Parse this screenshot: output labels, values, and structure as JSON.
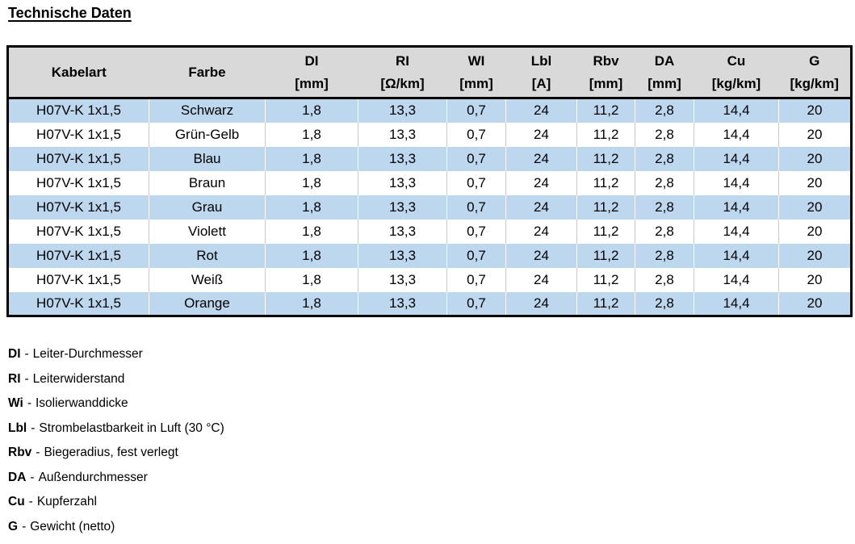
{
  "title": "Technische Daten",
  "colors": {
    "row_alt": "#BDD7EE",
    "header_bg": "#D9D9D9",
    "frame": "#000000"
  },
  "table": {
    "columns": [
      {
        "key": "kabelart",
        "label": "Kabelart",
        "unit": ""
      },
      {
        "key": "farbe",
        "label": "Farbe",
        "unit": ""
      },
      {
        "key": "di",
        "label": "DI",
        "unit": "[mm]"
      },
      {
        "key": "ri",
        "label": "RI",
        "unit": "[Ω/km]"
      },
      {
        "key": "wi",
        "label": "WI",
        "unit": "[mm]"
      },
      {
        "key": "lbl",
        "label": "Lbl",
        "unit": "[A]"
      },
      {
        "key": "rbv",
        "label": "Rbv",
        "unit": "[mm]"
      },
      {
        "key": "da",
        "label": "DA",
        "unit": "[mm]"
      },
      {
        "key": "cu",
        "label": "Cu",
        "unit": "[kg/km]"
      },
      {
        "key": "g",
        "label": "G",
        "unit": "[kg/km]"
      }
    ],
    "rows": [
      [
        "H07V-K 1x1,5",
        "Schwarz",
        "1,8",
        "13,3",
        "0,7",
        "24",
        "11,2",
        "2,8",
        "14,4",
        "20"
      ],
      [
        "H07V-K 1x1,5",
        "Grün-Gelb",
        "1,8",
        "13,3",
        "0,7",
        "24",
        "11,2",
        "2,8",
        "14,4",
        "20"
      ],
      [
        "H07V-K 1x1,5",
        "Blau",
        "1,8",
        "13,3",
        "0,7",
        "24",
        "11,2",
        "2,8",
        "14,4",
        "20"
      ],
      [
        "H07V-K 1x1,5",
        "Braun",
        "1,8",
        "13,3",
        "0,7",
        "24",
        "11,2",
        "2,8",
        "14,4",
        "20"
      ],
      [
        "H07V-K 1x1,5",
        "Grau",
        "1,8",
        "13,3",
        "0,7",
        "24",
        "11,2",
        "2,8",
        "14,4",
        "20"
      ],
      [
        "H07V-K 1x1,5",
        "Violett",
        "1,8",
        "13,3",
        "0,7",
        "24",
        "11,2",
        "2,8",
        "14,4",
        "20"
      ],
      [
        "H07V-K 1x1,5",
        "Rot",
        "1,8",
        "13,3",
        "0,7",
        "24",
        "11,2",
        "2,8",
        "14,4",
        "20"
      ],
      [
        "H07V-K 1x1,5",
        "Weiß",
        "1,8",
        "13,3",
        "0,7",
        "24",
        "11,2",
        "2,8",
        "14,4",
        "20"
      ],
      [
        "H07V-K 1x1,5",
        "Orange",
        "1,8",
        "13,3",
        "0,7",
        "24",
        "11,2",
        "2,8",
        "14,4",
        "20"
      ]
    ]
  },
  "legend_separator": "-",
  "legend": [
    {
      "abbr": "DI",
      "text": "Leiter-Durchmesser"
    },
    {
      "abbr": "RI",
      "text": "Leiterwiderstand"
    },
    {
      "abbr": "Wi",
      "text": "Isolierwanddicke"
    },
    {
      "abbr": "Lbl",
      "text": "Strombelastbarkeit in Luft (30 °C)"
    },
    {
      "abbr": "Rbv",
      "text": "Biegeradius, fest verlegt"
    },
    {
      "abbr": "DA",
      "text": "Außendurchmesser"
    },
    {
      "abbr": "Cu",
      "text": "Kupferzahl"
    },
    {
      "abbr": "G",
      "text": "Gewicht (netto)"
    }
  ]
}
